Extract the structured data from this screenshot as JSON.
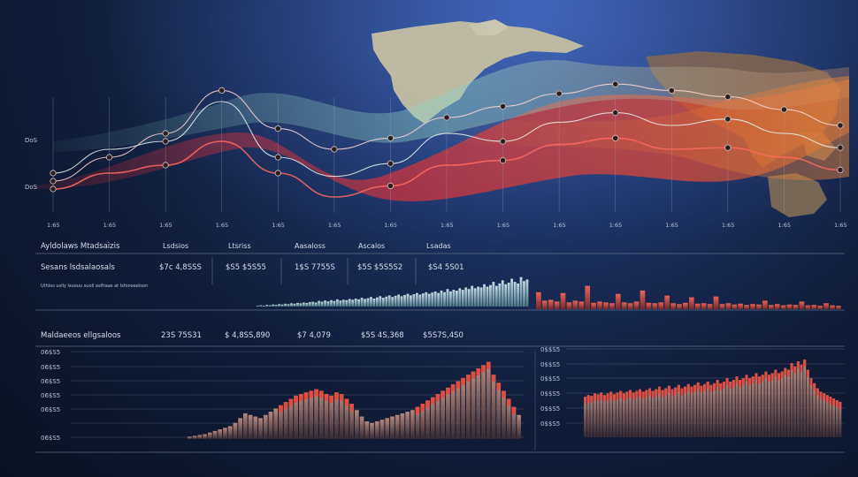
{
  "colors": {
    "background_top": "#2f55a8",
    "background_bottom": "#0b1322",
    "wave_red": "#e0333a",
    "wave_teal": "#8fd3c4",
    "wave_orange": "#e8742e",
    "bar_teal": "#a9cfd0",
    "bar_red": "#d8463a",
    "map_land": "#c9c2a4",
    "grid": "#8b97ad"
  },
  "top_chart": {
    "y_labels": [
      "DoS",
      "DoS"
    ],
    "x_labels": [
      "1:65",
      "1:65",
      "1:65",
      "1:65",
      "1:65",
      "1:65",
      "1:65",
      "1:65",
      "1:65",
      "1:65",
      "1:65",
      "1:65",
      "1:65",
      "1:65",
      "1:65"
    ]
  },
  "table": {
    "row1_label": "Ayldolaws Mtadsaizis",
    "headers": [
      "Lsdsios",
      "Ltsriss",
      "Aasaloss",
      "Ascalos",
      "Lsadas"
    ],
    "row2_label": "Sesans lsdsalaosals",
    "row2_values": [
      "$7c 4,8SSS",
      "$S5 $5S55",
      "1$S 7755S",
      "$5S $5S5S2",
      "$S4 5S01"
    ],
    "note": "Uthlos uslly lsuouu suoll aslfraas at lsfonoeelson"
  },
  "lower_panel": {
    "row_label": "Maldaeeos ellgsaloos",
    "values": [
      "23S 75S31",
      "$ 4,8SS,890",
      "$7 4,079",
      "$5S 4S,368",
      "$5S7S,4S0"
    ],
    "left_y_labels": [
      "06$S5",
      "06$S5",
      "06$S5",
      "06$S5",
      "06$S5",
      "06$S5"
    ],
    "right_y_labels": [
      "0$$S5",
      "0$$S5",
      "0$$S5",
      "0$$S5",
      "0$$S5",
      "0$$S5"
    ]
  },
  "chart_data": [
    {
      "type": "line",
      "x": [
        0,
        1,
        2,
        3,
        4,
        5,
        6,
        7,
        8,
        9,
        10,
        11,
        12,
        13,
        14
      ],
      "series": [
        {
          "values": [
            30,
            45,
            50,
            75,
            40,
            28,
            36,
            55,
            50,
            62,
            68,
            60,
            64,
            55,
            46
          ]
        },
        {
          "values": [
            25,
            40,
            55,
            82,
            58,
            45,
            52,
            65,
            72,
            80,
            86,
            82,
            78,
            70,
            60
          ]
        },
        {
          "values": [
            20,
            30,
            35,
            50,
            30,
            15,
            22,
            35,
            38,
            48,
            52,
            45,
            46,
            40,
            32
          ]
        }
      ]
    },
    {
      "type": "bar",
      "values": [
        2,
        3,
        2,
        4,
        3,
        5,
        4,
        6,
        5,
        7,
        6,
        8,
        7,
        9,
        8,
        10,
        9,
        11,
        12,
        10,
        14,
        12,
        15,
        13,
        16,
        14,
        18,
        15,
        17,
        16,
        19,
        17,
        20,
        18,
        22,
        19,
        21,
        24,
        20,
        23,
        26,
        22,
        25,
        28,
        24,
        27,
        30,
        26,
        29,
        32,
        28,
        31,
        34,
        30,
        33,
        36,
        32,
        35,
        38,
        34,
        40,
        36,
        44,
        38,
        42,
        40,
        46,
        42,
        48,
        44,
        52,
        46,
        50,
        48,
        56,
        50,
        54,
        62,
        52,
        58,
        66,
        56,
        60,
        70,
        62,
        58,
        74,
        64,
        68
      ],
      "ylim": [
        0,
        100
      ]
    },
    {
      "type": "bar",
      "values": [
        40,
        20,
        22,
        18,
        38,
        16,
        20,
        18,
        55,
        15,
        18,
        16,
        14,
        36,
        16,
        14,
        18,
        44,
        15,
        14,
        16,
        32,
        14,
        12,
        15,
        28,
        13,
        14,
        12,
        30,
        12,
        14,
        11,
        13,
        10,
        12,
        11,
        20,
        10,
        12,
        9,
        11,
        10,
        18,
        9,
        10,
        8,
        14,
        9,
        8
      ],
      "ylim": [
        0,
        100
      ]
    },
    {
      "type": "bar",
      "values": [
        3,
        4,
        5,
        6,
        8,
        10,
        12,
        14,
        16,
        20,
        26,
        32,
        30,
        28,
        26,
        30,
        34,
        38,
        42,
        46,
        50,
        54,
        56,
        58,
        60,
        62,
        60,
        56,
        54,
        58,
        56,
        50,
        44,
        36,
        28,
        22,
        20,
        22,
        24,
        26,
        28,
        30,
        32,
        34,
        36,
        40,
        44,
        48,
        52,
        56,
        60,
        64,
        68,
        72,
        76,
        80,
        84,
        88,
        92,
        96,
        80,
        70,
        60,
        50,
        40,
        30
      ],
      "ylim": [
        0,
        110
      ]
    },
    {
      "type": "bar",
      "values": [
        48,
        50,
        49,
        52,
        51,
        53,
        50,
        52,
        54,
        51,
        53,
        55,
        52,
        54,
        56,
        53,
        55,
        57,
        54,
        56,
        58,
        55,
        57,
        60,
        56,
        58,
        61,
        57,
        59,
        62,
        58,
        60,
        63,
        60,
        62,
        65,
        61,
        63,
        66,
        62,
        64,
        68,
        64,
        66,
        70,
        66,
        68,
        72,
        68,
        70,
        74,
        70,
        72,
        76,
        72,
        74,
        78,
        74,
        76,
        80,
        76,
        78,
        82,
        80,
        88,
        84,
        90,
        86,
        92,
        80,
        70,
        64,
        58,
        54,
        52,
        50,
        48,
        46,
        44,
        42
      ],
      "ylim": [
        0,
        110
      ]
    }
  ]
}
